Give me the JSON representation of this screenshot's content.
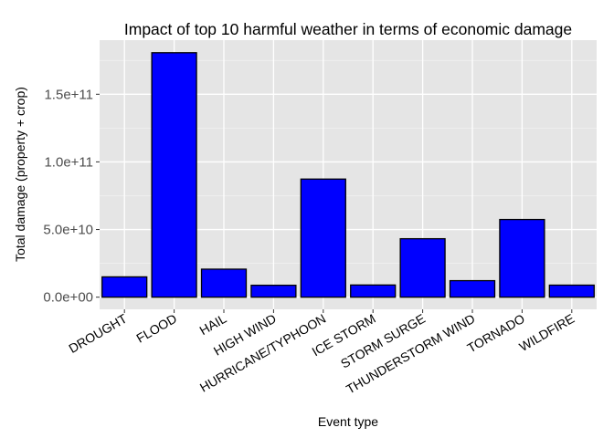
{
  "chart_data": {
    "type": "bar",
    "title": "Impact of top 10 harmful weather in terms of economic damage",
    "xlabel": "Event type",
    "ylabel": "Total damage (property + crop)",
    "categories": [
      "DROUGHT",
      "FLOOD",
      "HAIL",
      "HIGH WIND",
      "HURRICANE/TYPHOON",
      "ICE STORM",
      "STORM SURGE",
      "THUNDERSTORM WIND",
      "TORNADO",
      "WILDFIRE"
    ],
    "values": [
      15000000000,
      180700000000,
      20700000000,
      8800000000,
      87300000000,
      9000000000,
      43200000000,
      12200000000,
      57400000000,
      8900000000
    ],
    "y_ticks": [
      0,
      50000000000,
      100000000000,
      150000000000
    ],
    "y_tick_labels": [
      "0.0e+00",
      "5.0e+10",
      "1.0e+11",
      "1.5e+11"
    ],
    "ylim": [
      -9000000000,
      190000000000
    ],
    "grid": true,
    "colors": {
      "bar_fill": "#0000ff",
      "bar_outline": "#000000",
      "panel_background": "#e5e5e5",
      "grid_major": "#ffffff",
      "grid_minor": "#f2f2f2"
    }
  }
}
